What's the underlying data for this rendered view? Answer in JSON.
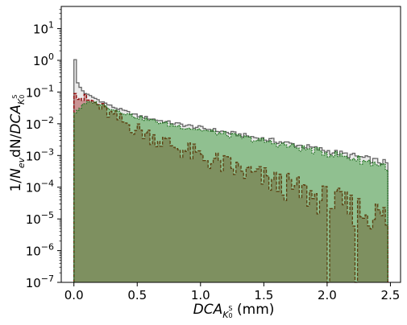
{
  "chart_data": {
    "type": "area",
    "log_y": true,
    "grid": false,
    "xlabel": "DCA_{K_0^S} (mm)",
    "ylabel": "1/N_{ev} dN/DCA_{K_0^S}",
    "xlim": [
      -0.1,
      2.58
    ],
    "ylim": [
      1e-07,
      50
    ],
    "x_ticks": [
      0.0,
      0.5,
      1.0,
      1.5,
      2.0,
      2.5
    ],
    "x_tick_labels": [
      "0.0",
      "0.5",
      "1.0",
      "1.5",
      "2.0",
      "2.5"
    ],
    "y_ticks": [
      1e-07,
      1e-06,
      1e-05,
      0.0001,
      0.001,
      0.01,
      0.1,
      1.0,
      10.0
    ],
    "y_tick_labels": [
      {
        "base": "10",
        "exp": "−7"
      },
      {
        "base": "10",
        "exp": "−6"
      },
      {
        "base": "10",
        "exp": "−5"
      },
      {
        "base": "10",
        "exp": "−4"
      },
      {
        "base": "10",
        "exp": "−3"
      },
      {
        "base": "10",
        "exp": "−2"
      },
      {
        "base": "10",
        "exp": "−1"
      },
      {
        "base": "10",
        "exp": "0"
      },
      {
        "base": "10",
        "exp": "1"
      }
    ],
    "bin_width": 0.02,
    "x_range": [
      0.0,
      2.48
    ],
    "series": [
      {
        "fill": "#d3d3d3",
        "edge": "#666666",
        "dash": "none",
        "knots": [
          [
            0.0,
            1.05
          ],
          [
            0.02,
            0.22
          ],
          [
            0.06,
            0.12
          ],
          [
            0.1,
            0.085
          ],
          [
            0.2,
            0.055
          ],
          [
            0.3,
            0.035
          ],
          [
            0.5,
            0.018
          ],
          [
            0.75,
            0.011
          ],
          [
            1.0,
            0.0075
          ],
          [
            1.25,
            0.005
          ],
          [
            1.5,
            0.0033
          ],
          [
            1.75,
            0.0022
          ],
          [
            2.0,
            0.0014
          ],
          [
            2.25,
            0.0009
          ],
          [
            2.48,
            0.00055
          ]
        ]
      },
      {
        "fill": "#a52a2a",
        "edge": "#8b0000",
        "dash": "4,2",
        "knots": [
          [
            0.0,
            0.09
          ],
          [
            0.02,
            0.09
          ],
          [
            0.06,
            0.065
          ],
          [
            0.1,
            0.055
          ],
          [
            0.15,
            0.05
          ],
          [
            0.2,
            0.035
          ],
          [
            0.3,
            0.018
          ],
          [
            0.5,
            0.0065
          ],
          [
            0.75,
            0.0023
          ],
          [
            1.0,
            0.0009
          ],
          [
            1.25,
            0.0004
          ],
          [
            1.5,
            0.00018
          ],
          [
            1.75,
            8e-05
          ],
          [
            2.0,
            3.5e-05
          ],
          [
            2.2,
            2e-05
          ],
          [
            2.35,
            1.5e-05
          ],
          [
            2.48,
            1e-05
          ]
        ]
      },
      {
        "fill": "#228b22",
        "edge": "#1f6f1f",
        "dash": "1.5,1.5",
        "knots": [
          [
            0.0,
            0.022
          ],
          [
            0.02,
            0.025
          ],
          [
            0.06,
            0.035
          ],
          [
            0.1,
            0.045
          ],
          [
            0.15,
            0.048
          ],
          [
            0.2,
            0.042
          ],
          [
            0.3,
            0.03
          ],
          [
            0.5,
            0.016
          ],
          [
            0.75,
            0.0095
          ],
          [
            1.0,
            0.0065
          ],
          [
            1.25,
            0.0042
          ],
          [
            1.5,
            0.0028
          ],
          [
            1.75,
            0.0018
          ],
          [
            2.0,
            0.0012
          ],
          [
            2.25,
            0.00075
          ],
          [
            2.48,
            0.00045
          ]
        ]
      }
    ]
  }
}
